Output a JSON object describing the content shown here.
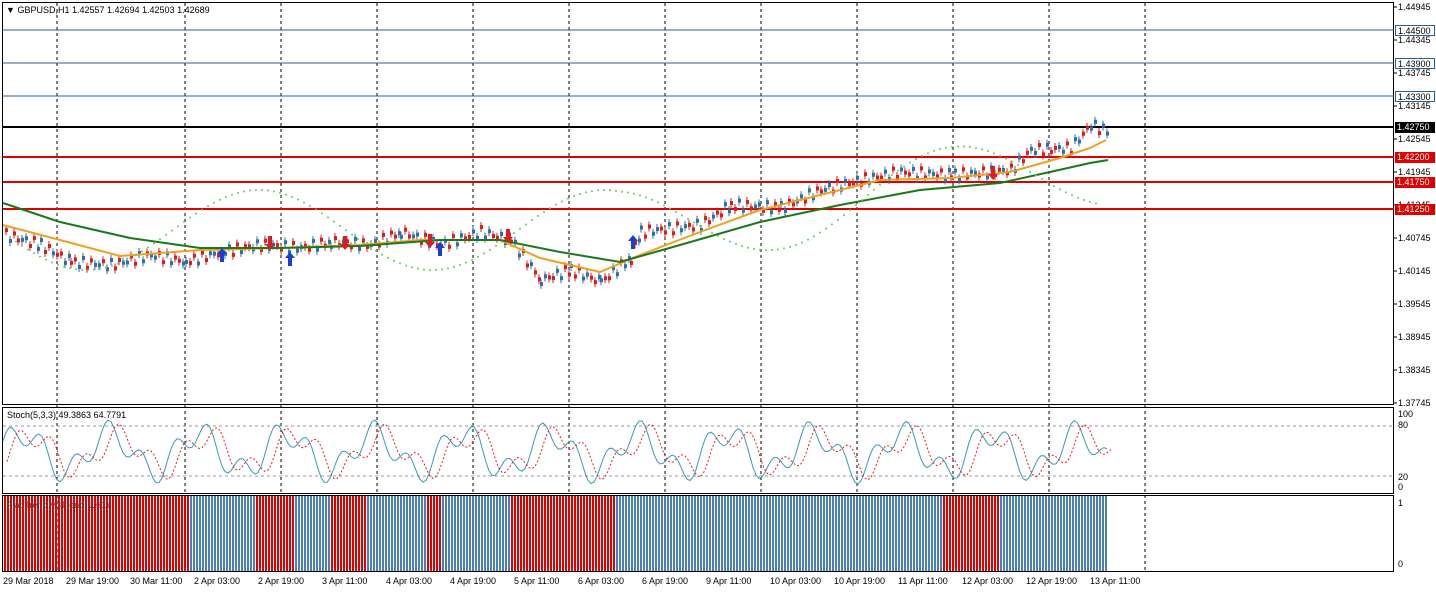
{
  "main": {
    "title_symbol": "GBPUSD,H1",
    "title_prices": "1.42557 1.42694 1.42503 1.42689",
    "price_ticks": [
      "1.44945",
      "1.44345",
      "1.43745",
      "1.43145",
      "1.42545",
      "1.41945",
      "1.41345",
      "1.40745",
      "1.40145",
      "1.39545",
      "1.38945",
      "1.38345",
      "1.37745"
    ],
    "levels": [
      {
        "label": "1.44500",
        "color": "blue"
      },
      {
        "label": "1.43900",
        "color": "blue"
      },
      {
        "label": "1.43300",
        "color": "blue"
      },
      {
        "label": "1.42750",
        "color": "black"
      },
      {
        "label": "1.42200",
        "color": "red"
      },
      {
        "label": "1.41750",
        "color": "red"
      },
      {
        "label": "1.41250",
        "color": "red"
      }
    ]
  },
  "stoch": {
    "title": "Stoch(5,3,3) 49.3863 64.7791",
    "ticks": [
      "100",
      "80",
      "20",
      "0"
    ]
  },
  "indicator": {
    "title": "Flat Trend V3Trend(1,H1)",
    "ticks": [
      "1",
      "0"
    ]
  },
  "time_labels": [
    "29 Mar 2018",
    "29 Mar 19:00",
    "30 Mar 11:00",
    "2 Apr 03:00",
    "2 Apr 19:00",
    "3 Apr 11:00",
    "4 Apr 03:00",
    "4 Apr 19:00",
    "5 Apr 11:00",
    "6 Apr 03:00",
    "6 Apr 19:00",
    "9 Apr 11:00",
    "10 Apr 03:00",
    "10 Apr 19:00",
    "11 Apr 11:00",
    "12 Apr 03:00",
    "12 Apr 19:00",
    "13 Apr 11:00"
  ],
  "colors": {
    "candle_up": "#2f6fb0",
    "candle_down": "#d81f1f",
    "blue_level": "#2f5f8f",
    "red_level": "#e00000",
    "ema_fast": "#f0a020",
    "ema_slow": "#1a7a1a",
    "psar": "#5bd05b",
    "stoch_main": "#3a9ab0",
    "stoch_signal": "#e02020",
    "hist_blue": "#4a7fb8",
    "hist_red": "#e00000"
  }
}
